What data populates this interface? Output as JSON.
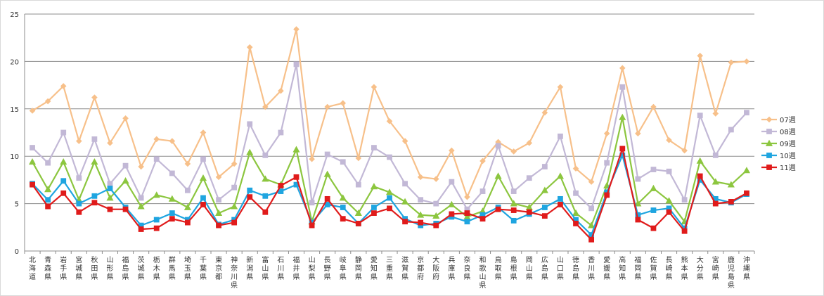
{
  "chart_data": {
    "type": "line",
    "title": "",
    "xlabel": "",
    "ylabel": "",
    "ylim": [
      0,
      25
    ],
    "yticks": [
      "0",
      "5",
      "10",
      "15",
      "20",
      "25"
    ],
    "grid": true,
    "legend_position": "right",
    "categories": [
      "北海道",
      "青森県",
      "岩手県",
      "宮城県",
      "秋田県",
      "山形県",
      "福島県",
      "茨城県",
      "栃木県",
      "群馬県",
      "埼玉県",
      "千葉県",
      "東京都",
      "神奈川県",
      "新潟県",
      "富山県",
      "石川県",
      "福井県",
      "山梨県",
      "長野県",
      "岐阜県",
      "静岡県",
      "愛知県",
      "三重県",
      "滋賀県",
      "京都府",
      "大阪府",
      "兵庫県",
      "奈良県",
      "和歌山県",
      "鳥取県",
      "島根県",
      "岡山県",
      "広島県",
      "山口県",
      "徳島県",
      "香川県",
      "愛媛県",
      "高知県",
      "福岡県",
      "佐賀県",
      "長崎県",
      "熊本県",
      "大分県",
      "宮崎県",
      "鹿児島県",
      "沖縄県"
    ],
    "series": [
      {
        "name": "07週",
        "color": "#f7c08a",
        "marker": "diamond",
        "values": [
          14.8,
          15.8,
          17.4,
          11.6,
          16.2,
          11.4,
          14.0,
          8.9,
          11.8,
          11.6,
          9.2,
          12.5,
          7.8,
          9.2,
          21.5,
          15.2,
          16.9,
          23.4,
          9.7,
          15.2,
          15.6,
          9.8,
          17.3,
          13.7,
          11.6,
          7.8,
          7.6,
          10.6,
          5.7,
          9.5,
          11.5,
          10.5,
          11.4,
          14.6,
          17.3,
          8.7,
          7.3,
          12.4,
          19.3,
          12.4,
          15.2,
          11.7,
          10.6,
          20.6,
          14.5,
          19.9,
          20.0
        ]
      },
      {
        "name": "08週",
        "color": "#c2b8d6",
        "marker": "square",
        "values": [
          10.9,
          9.3,
          12.5,
          7.7,
          11.8,
          7.1,
          9.0,
          5.6,
          9.7,
          8.2,
          6.4,
          9.7,
          5.4,
          6.7,
          13.4,
          10.1,
          12.5,
          19.7,
          5.1,
          10.2,
          9.4,
          7.0,
          10.9,
          9.9,
          7.1,
          5.4,
          5.0,
          7.3,
          4.4,
          6.3,
          11.1,
          6.3,
          7.7,
          8.9,
          12.1,
          6.1,
          4.5,
          9.3,
          17.3,
          7.6,
          8.6,
          8.4,
          5.4,
          14.3,
          10.1,
          12.8,
          14.6
        ]
      },
      {
        "name": "09週",
        "color": "#8cc63f",
        "marker": "triangle",
        "values": [
          9.4,
          6.5,
          9.4,
          5.4,
          9.4,
          5.6,
          7.4,
          4.7,
          5.9,
          5.5,
          4.6,
          7.7,
          4.0,
          4.7,
          10.4,
          7.6,
          7.0,
          10.7,
          3.1,
          8.1,
          5.6,
          4.0,
          6.8,
          6.2,
          5.2,
          3.8,
          3.7,
          4.9,
          3.6,
          4.2,
          7.9,
          5.0,
          4.6,
          6.4,
          7.9,
          4.0,
          2.7,
          6.9,
          14.1,
          5.0,
          6.6,
          5.3,
          3.1,
          9.5,
          7.3,
          7.0,
          8.5
        ]
      },
      {
        "name": "10週",
        "color": "#1fa5e0",
        "marker": "square",
        "values": [
          7.1,
          5.4,
          7.4,
          5.0,
          5.8,
          6.6,
          4.6,
          2.7,
          3.3,
          4.0,
          3.3,
          5.6,
          2.8,
          3.3,
          6.4,
          5.8,
          6.3,
          7.0,
          3.0,
          4.9,
          4.6,
          2.9,
          4.6,
          5.6,
          3.4,
          2.7,
          2.9,
          3.6,
          3.1,
          3.8,
          4.6,
          3.2,
          3.9,
          4.6,
          5.5,
          3.3,
          1.7,
          6.2,
          10.1,
          3.8,
          4.3,
          4.5,
          2.4,
          7.5,
          5.5,
          5.1,
          6.0
        ]
      },
      {
        "name": "11週",
        "color": "#e01b1b",
        "marker": "square",
        "values": [
          7.0,
          4.7,
          6.1,
          4.1,
          5.1,
          4.4,
          4.4,
          2.3,
          2.4,
          3.4,
          3.0,
          4.9,
          2.7,
          3.0,
          5.7,
          4.1,
          6.9,
          7.8,
          2.7,
          5.5,
          3.4,
          2.9,
          4.0,
          4.5,
          3.1,
          3.0,
          2.7,
          3.9,
          4.0,
          3.4,
          4.4,
          4.3,
          4.1,
          3.7,
          4.9,
          2.9,
          1.2,
          5.9,
          10.8,
          3.3,
          2.4,
          4.1,
          2.1,
          7.9,
          5.0,
          5.2,
          6.1
        ]
      }
    ]
  }
}
